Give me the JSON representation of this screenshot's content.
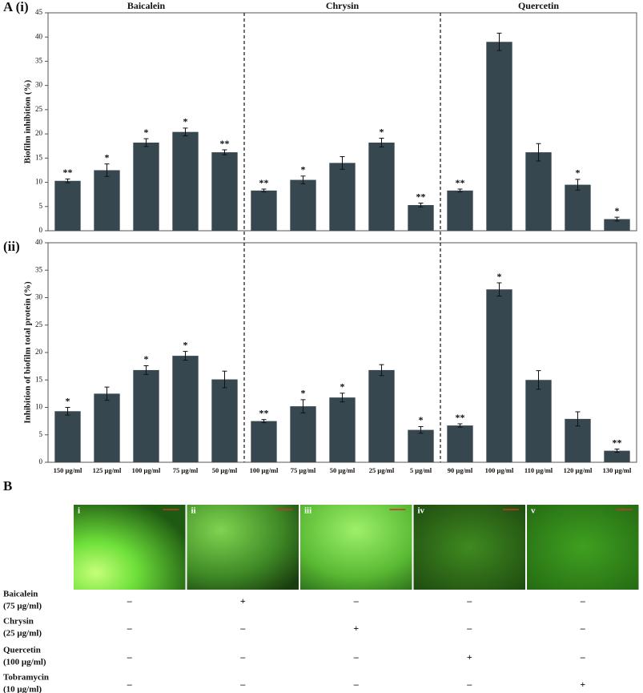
{
  "chart_data": [
    {
      "type": "bar",
      "panel": "A (i)",
      "ylabel": "Biofilm inhibition (%)",
      "groups": [
        "Baicalein",
        "Chrysin",
        "Quercetin"
      ],
      "categories": [
        null,
        null,
        null,
        null,
        null,
        null,
        null,
        null,
        null,
        null,
        null,
        null,
        null,
        null,
        null
      ],
      "color": "#37474f",
      "grid": false,
      "values": [
        10.3,
        12.5,
        18.2,
        20.4,
        16.2,
        8.3,
        10.5,
        14.0,
        18.2,
        5.3,
        8.3,
        39.0,
        16.2,
        9.5,
        2.4
      ],
      "errors": [
        0.4,
        1.3,
        0.8,
        0.8,
        0.5,
        0.3,
        0.8,
        1.3,
        0.9,
        0.4,
        0.3,
        1.8,
        1.8,
        1.1,
        0.4
      ],
      "annotations": [
        "**",
        "*",
        "*",
        "*",
        "**",
        "**",
        "*",
        null,
        "*",
        "**",
        "**",
        null,
        null,
        "*",
        "*"
      ],
      "ylim": [
        0,
        45
      ],
      "yticks": [
        0,
        5,
        10,
        15,
        20,
        25,
        30,
        35,
        40,
        45
      ]
    },
    {
      "type": "bar",
      "panel": "(ii)",
      "ylabel": "Inhibition of biofilm total protein (%)",
      "categories": [
        "150 μg/ml",
        "125 μg/ml",
        "100 μg/ml",
        "75 μg/ml",
        "50 μg/ml",
        "100 μg/ml",
        "75 μg/ml",
        "50 μg/ml",
        "25 μg/ml",
        "5 μg/ml",
        "90 μg/ml",
        "100 μg/ml",
        "110 μg/ml",
        "120 μg/ml",
        "130 μg/ml"
      ],
      "color": "#37474f",
      "grid": false,
      "values": [
        9.3,
        12.5,
        16.8,
        19.4,
        15.1,
        7.5,
        10.2,
        11.8,
        16.8,
        5.9,
        6.7,
        31.5,
        15.0,
        7.9,
        2.1
      ],
      "errors": [
        0.7,
        1.2,
        0.8,
        0.8,
        1.5,
        0.3,
        1.2,
        0.8,
        1.0,
        0.6,
        0.3,
        1.2,
        1.7,
        1.3,
        0.3
      ],
      "annotations": [
        "*",
        null,
        "*",
        "*",
        null,
        "**",
        "*",
        "*",
        null,
        "*",
        "**",
        "*",
        null,
        null,
        "**"
      ],
      "ylim": [
        0,
        40
      ],
      "yticks": [
        0,
        5,
        10,
        15,
        20,
        25,
        30,
        35,
        40
      ]
    }
  ],
  "panel_b": {
    "label": "B",
    "images": [
      "i",
      "ii",
      "iii",
      "iv",
      "v"
    ],
    "rows": [
      {
        "label": "Baicalein",
        "dose": "(75 μg/ml)",
        "signs": [
          "–",
          "+",
          "–",
          "–",
          "–"
        ]
      },
      {
        "label": "Chrysin",
        "dose": "(25 μg/ml)",
        "signs": [
          "–",
          "–",
          "+",
          "–",
          "–"
        ]
      },
      {
        "label": "Quercetin",
        "dose": "(100 μg/ml)",
        "signs": [
          "–",
          "–",
          "–",
          "+",
          "–"
        ]
      },
      {
        "label": "Tobramycin",
        "dose": "(10 μg/ml)",
        "signs": [
          "–",
          "–",
          "–",
          "–",
          "+"
        ]
      }
    ]
  }
}
